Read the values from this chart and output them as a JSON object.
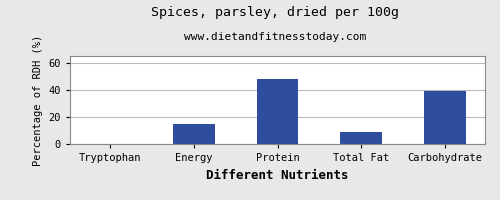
{
  "title": "Spices, parsley, dried per 100g",
  "subtitle": "www.dietandfitnesstoday.com",
  "xlabel": "Different Nutrients",
  "ylabel": "Percentage of RDH (%)",
  "categories": [
    "Tryptophan",
    "Energy",
    "Protein",
    "Total Fat",
    "Carbohydrate"
  ],
  "values": [
    0,
    15,
    48,
    9,
    39
  ],
  "bar_color": "#2e4d9e",
  "ylim": [
    0,
    65
  ],
  "yticks": [
    0,
    20,
    40,
    60
  ],
  "background_color": "#e8e8e8",
  "plot_background": "#ffffff",
  "title_fontsize": 9.5,
  "subtitle_fontsize": 8,
  "xlabel_fontsize": 9,
  "ylabel_fontsize": 7.5,
  "tick_fontsize": 7.5,
  "grid_color": "#bbbbbb",
  "spine_color": "#888888"
}
